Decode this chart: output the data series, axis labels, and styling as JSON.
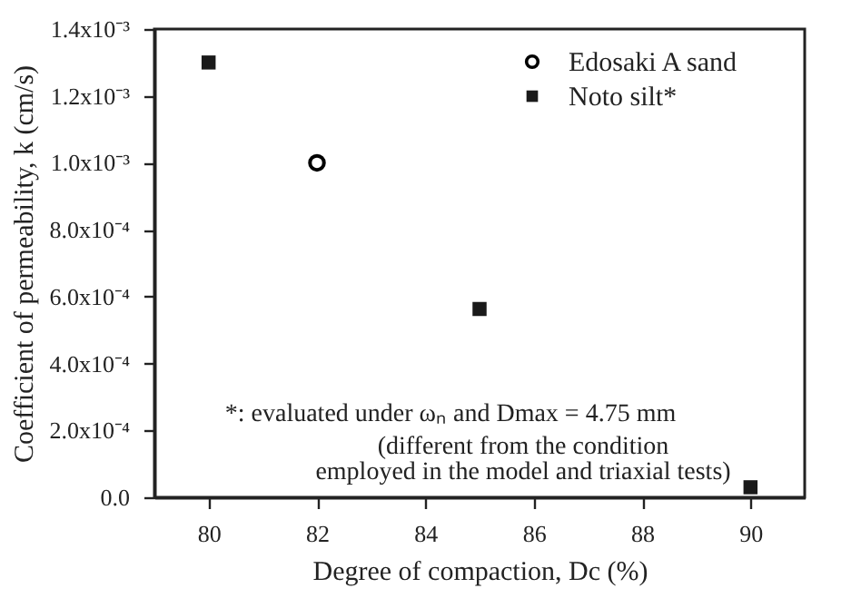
{
  "chart_data": {
    "type": "scatter",
    "xlabel": "Degree of compaction, Dc (%)",
    "ylabel": "Coefficient of permeability, k (cm/s)",
    "series": [
      {
        "name": "Edosaki A sand",
        "color": "#000000",
        "marker": "circle",
        "x": [
          82
        ],
        "values": [
          0.001
        ]
      },
      {
        "name": "Noto silt*",
        "color": "#1a1a1a",
        "marker": "square",
        "x": [
          80,
          85,
          90
        ],
        "values": [
          0.0013,
          0.000563,
          3e-05
        ]
      }
    ],
    "xlim": [
      79,
      91
    ],
    "xticks": [
      80,
      82,
      84,
      86,
      88,
      90
    ],
    "ylim": [
      0,
      0.0014
    ],
    "yticks": [
      {
        "value": 0,
        "label": "0.0"
      },
      {
        "value": 0.0002,
        "label": "2.0x10⁻⁴"
      },
      {
        "value": 0.0004,
        "label": "4.0x10⁻⁴"
      },
      {
        "value": 0.0006,
        "label": "6.0x10⁻⁴"
      },
      {
        "value": 0.0008,
        "label": "8.0x10⁻⁴"
      },
      {
        "value": 0.001,
        "label": "1.0x10⁻³"
      },
      {
        "value": 0.0012,
        "label": "1.2x10⁻³"
      },
      {
        "value": 0.0014,
        "label": "1.4x10⁻³"
      }
    ],
    "annotations": [
      "*: evaluated under ωₙ and Dmax = 4.75 mm",
      "(different from the condition",
      "employed in the model and triaxial tests)"
    ],
    "legend": "top right",
    "grid": false
  }
}
